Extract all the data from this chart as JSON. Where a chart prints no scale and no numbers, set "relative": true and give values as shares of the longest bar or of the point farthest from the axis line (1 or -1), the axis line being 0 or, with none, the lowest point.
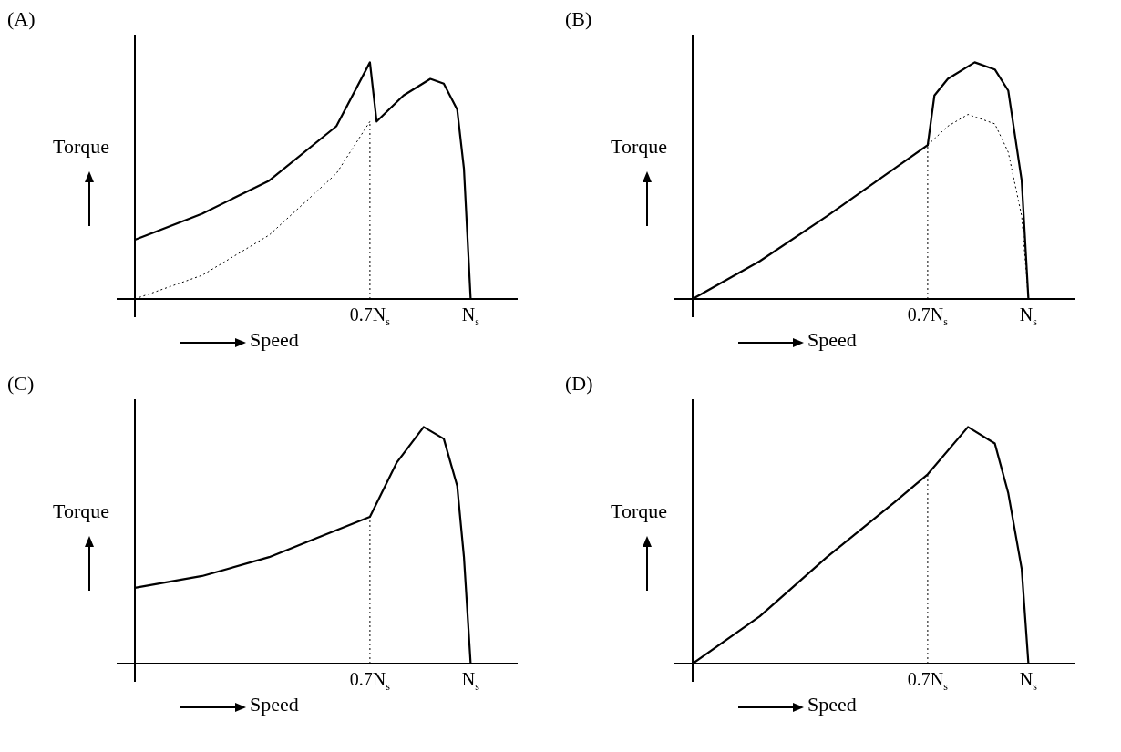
{
  "chart_data": [
    {
      "type": "line",
      "title": "(A)",
      "xlabel": "Speed",
      "ylabel": "Torque",
      "relative": true,
      "tick_labels": "x",
      "marker": "none",
      "categories": [
        null,
        null,
        null,
        null,
        null,
        null,
        null,
        null,
        null,
        null,
        null,
        null,
        null,
        null,
        null,
        null,
        null,
        null,
        null,
        null,
        null,
        null,
        null,
        null,
        null,
        null,
        null,
        null,
        null,
        null,
        null,
        null,
        null,
        null,
        null,
        "0.7N$_{s}$",
        null,
        null,
        null,
        null,
        null,
        null,
        null,
        null,
        null,
        null,
        null,
        null,
        null,
        null,
        "N$_{s}$",
        null,
        null,
        null,
        null,
        null,
        null,
        null
      ],
      "ref_lines": [
        {
          "axis": "x",
          "value": "0.7N$_{s}$",
          "line_style": "dotted",
          "color": "#000000"
        }
      ],
      "series": [
        {
          "color": "#000000",
          "values": [
            0.25,
            null,
            null,
            null,
            null,
            null,
            null,
            null,
            null,
            null,
            0.36,
            null,
            null,
            null,
            null,
            null,
            null,
            null,
            null,
            null,
            0.5,
            null,
            null,
            null,
            null,
            null,
            null,
            null,
            null,
            null,
            0.73,
            null,
            null,
            null,
            null,
            1,
            0.75,
            null,
            null,
            null,
            0.86,
            null,
            null,
            null,
            0.93,
            null,
            0.91,
            null,
            0.8,
            0.55,
            0,
            null,
            null,
            null,
            null,
            null,
            null,
            null
          ]
        },
        {
          "color": "#000000",
          "line_style": "dotted",
          "values": [
            0,
            null,
            null,
            null,
            null,
            null,
            null,
            null,
            null,
            null,
            0.1,
            null,
            null,
            null,
            null,
            null,
            null,
            null,
            null,
            null,
            0.27,
            null,
            null,
            null,
            null,
            null,
            null,
            null,
            null,
            null,
            0.53,
            null,
            null,
            null,
            null,
            0.75,
            null,
            null,
            null,
            null,
            null,
            null,
            null,
            null,
            null,
            null,
            null,
            null,
            null,
            null,
            null,
            null,
            null,
            null,
            null,
            null,
            null,
            null
          ]
        }
      ]
    },
    {
      "type": "line",
      "title": "(B)",
      "xlabel": "Speed",
      "ylabel": "Torque",
      "relative": true,
      "tick_labels": "x",
      "marker": "none",
      "categories": [
        null,
        null,
        null,
        null,
        null,
        null,
        null,
        null,
        null,
        null,
        null,
        null,
        null,
        null,
        null,
        null,
        null,
        null,
        null,
        null,
        null,
        null,
        null,
        null,
        null,
        null,
        null,
        null,
        null,
        null,
        null,
        null,
        null,
        null,
        null,
        "0.7N$_{s}$",
        null,
        null,
        null,
        null,
        null,
        null,
        null,
        null,
        null,
        null,
        null,
        null,
        null,
        null,
        "N$_{s}$",
        null,
        null,
        null,
        null,
        null,
        null,
        null
      ],
      "ref_lines": [
        {
          "axis": "x",
          "value": "0.7N$_{s}$",
          "line_style": "dotted",
          "color": "#000000"
        }
      ],
      "series": [
        {
          "color": "#000000",
          "values": [
            0,
            null,
            null,
            null,
            null,
            null,
            null,
            null,
            null,
            null,
            0.16,
            null,
            null,
            null,
            null,
            null,
            null,
            null,
            null,
            null,
            0.35,
            null,
            null,
            null,
            null,
            null,
            null,
            null,
            null,
            null,
            0.55,
            null,
            null,
            null,
            null,
            0.65,
            0.86,
            null,
            0.93,
            null,
            null,
            null,
            1,
            null,
            null,
            0.97,
            null,
            0.88,
            null,
            0.5,
            0,
            null,
            null,
            null,
            null,
            null,
            null,
            null
          ]
        },
        {
          "color": "#000000",
          "line_style": "dotted",
          "values": [
            null,
            null,
            null,
            null,
            null,
            null,
            null,
            null,
            null,
            null,
            null,
            null,
            null,
            null,
            null,
            null,
            null,
            null,
            null,
            null,
            null,
            null,
            null,
            null,
            null,
            null,
            null,
            null,
            null,
            null,
            null,
            null,
            null,
            null,
            null,
            0.65,
            null,
            null,
            0.73,
            null,
            null,
            0.78,
            null,
            null,
            null,
            0.74,
            null,
            0.62,
            null,
            0.35,
            0,
            null,
            null,
            null,
            null,
            null,
            null,
            null
          ]
        }
      ]
    },
    {
      "type": "line",
      "title": "(C)",
      "xlabel": "Speed",
      "ylabel": "Torque",
      "relative": true,
      "tick_labels": "x",
      "marker": "none",
      "categories": [
        null,
        null,
        null,
        null,
        null,
        null,
        null,
        null,
        null,
        null,
        null,
        null,
        null,
        null,
        null,
        null,
        null,
        null,
        null,
        null,
        null,
        null,
        null,
        null,
        null,
        null,
        null,
        null,
        null,
        null,
        null,
        null,
        null,
        null,
        null,
        "0.7N$_{s}$",
        null,
        null,
        null,
        null,
        null,
        null,
        null,
        null,
        null,
        null,
        null,
        null,
        null,
        null,
        "N$_{s}$",
        null,
        null,
        null,
        null,
        null,
        null,
        null
      ],
      "ref_lines": [
        {
          "axis": "x",
          "value": "0.7N$_{s}$",
          "line_style": "dotted",
          "color": "#000000"
        }
      ],
      "series": [
        {
          "color": "#000000",
          "values": [
            0.32,
            null,
            null,
            null,
            null,
            null,
            null,
            null,
            null,
            null,
            0.37,
            null,
            null,
            null,
            null,
            null,
            null,
            null,
            null,
            null,
            0.45,
            null,
            null,
            null,
            null,
            null,
            null,
            0.53,
            null,
            null,
            null,
            null,
            null,
            null,
            null,
            0.62,
            null,
            null,
            null,
            0.85,
            null,
            null,
            null,
            1,
            null,
            null,
            0.95,
            null,
            0.75,
            0.45,
            0,
            null,
            null,
            null,
            null,
            null,
            null,
            null
          ]
        }
      ]
    },
    {
      "type": "line",
      "title": "(D)",
      "xlabel": "Speed",
      "ylabel": "Torque",
      "relative": true,
      "tick_labels": "x",
      "marker": "none",
      "categories": [
        null,
        null,
        null,
        null,
        null,
        null,
        null,
        null,
        null,
        null,
        null,
        null,
        null,
        null,
        null,
        null,
        null,
        null,
        null,
        null,
        null,
        null,
        null,
        null,
        null,
        null,
        null,
        null,
        null,
        null,
        null,
        null,
        null,
        null,
        null,
        "0.7N$_{s}$",
        null,
        null,
        null,
        null,
        null,
        null,
        null,
        null,
        null,
        null,
        null,
        null,
        null,
        null,
        "N$_{s}$",
        null,
        null,
        null,
        null,
        null,
        null,
        null
      ],
      "ref_lines": [
        {
          "axis": "x",
          "value": "0.7N$_{s}$",
          "line_style": "dotted",
          "color": "#000000"
        }
      ],
      "series": [
        {
          "color": "#000000",
          "values": [
            0,
            null,
            null,
            null,
            null,
            null,
            null,
            null,
            null,
            null,
            0.2,
            null,
            null,
            null,
            null,
            null,
            null,
            null,
            null,
            null,
            0.45,
            null,
            null,
            null,
            null,
            null,
            null,
            null,
            null,
            null,
            0.68,
            null,
            null,
            null,
            null,
            0.8,
            null,
            null,
            null,
            null,
            null,
            1,
            null,
            null,
            null,
            0.93,
            null,
            0.72,
            null,
            0.4,
            0,
            null,
            null,
            null,
            null,
            null,
            null,
            null
          ]
        }
      ]
    }
  ]
}
